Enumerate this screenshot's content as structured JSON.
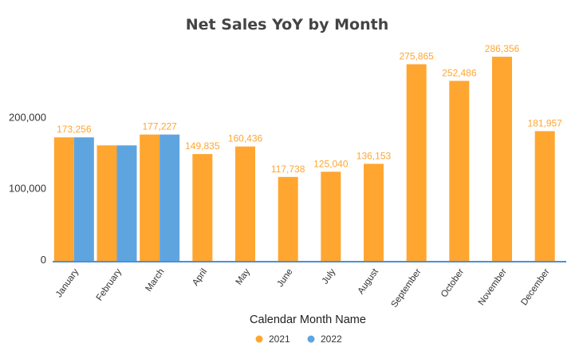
{
  "chart_data": {
    "type": "bar",
    "title": "Net Sales YoY by  Month",
    "xlabel": "Calendar Month Name",
    "ylabel": "",
    "ylim": [
      0,
      310000
    ],
    "yticks": [
      {
        "value": 0,
        "label": "0"
      },
      {
        "value": 100000,
        "label": "100,000"
      },
      {
        "value": 200000,
        "label": "200,000"
      }
    ],
    "grid": false,
    "legend_position": "bottom",
    "categories": [
      "January",
      "February",
      "March",
      "April",
      "May",
      "June",
      "July",
      "August",
      "September",
      "October",
      "November",
      "December"
    ],
    "series": [
      {
        "name": "2021",
        "color": "#ffa630",
        "values": [
          173256,
          162000,
          177227,
          149835,
          160436,
          117738,
          125040,
          136153,
          275865,
          252486,
          286356,
          181957
        ],
        "data_labels": [
          "173,256",
          "",
          "177,227",
          "149,835",
          "160,436",
          "117,738",
          "125,040",
          "136,153",
          "275,865",
          "252,486",
          "286,356",
          "181,957"
        ]
      },
      {
        "name": "2022",
        "color": "#5ea5e0",
        "values": [
          173256,
          162000,
          177227,
          null,
          null,
          null,
          null,
          null,
          null,
          null,
          null,
          null
        ],
        "data_labels": [
          "",
          "",
          "",
          "",
          "",
          "",
          "",
          "",
          "",
          "",
          "",
          ""
        ]
      }
    ],
    "axis_color": "#4a90d9"
  }
}
